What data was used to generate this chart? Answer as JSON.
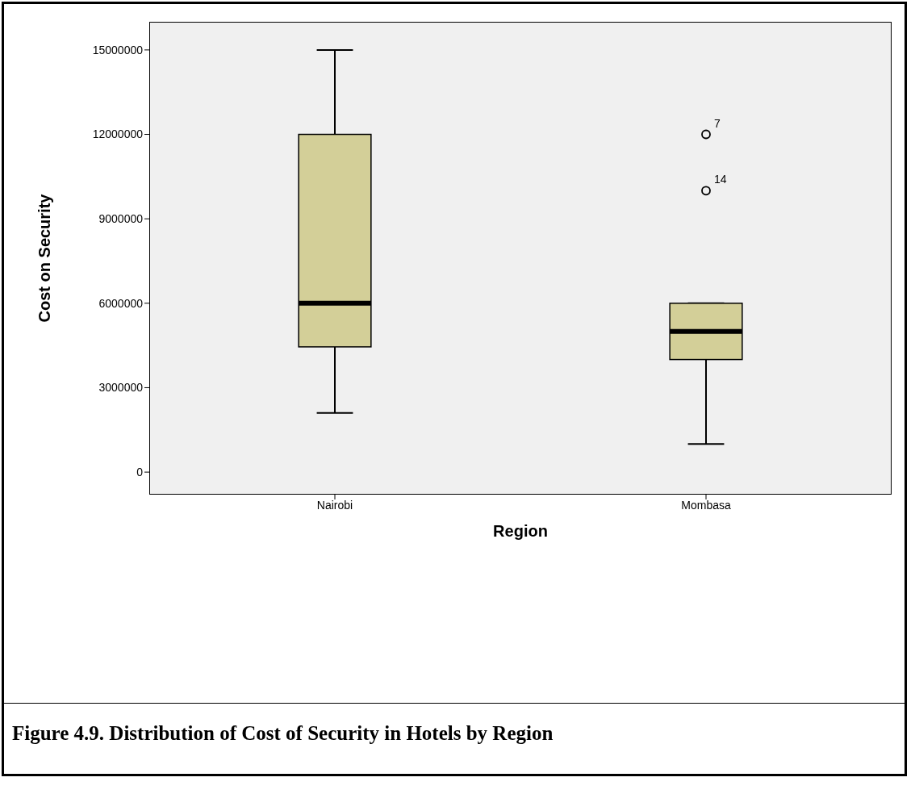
{
  "chart_data": {
    "type": "box",
    "xlabel": "Region",
    "ylabel": "Cost on Security",
    "categories": [
      "Nairobi",
      "Mombasa"
    ],
    "boxes": [
      {
        "low": 2100000,
        "q1": 4450000,
        "median": 6000000,
        "q3": 12000000,
        "high": 15000000
      },
      {
        "low": 1000000,
        "q1": 4000000,
        "median": 5000000,
        "q3": 6000000,
        "high": 6000000,
        "outliers": [
          12000000,
          10000000
        ]
      }
    ],
    "color": "#d3cf98",
    "ylim": [
      -800000,
      16000000
    ],
    "yticks": [
      0,
      3000000,
      6000000,
      9000000,
      12000000,
      15000000
    ],
    "grid": false,
    "annotations": [
      "7",
      "14",
      "Figure 4.9. Distribution of Cost of Security in Hotels by Region"
    ]
  }
}
